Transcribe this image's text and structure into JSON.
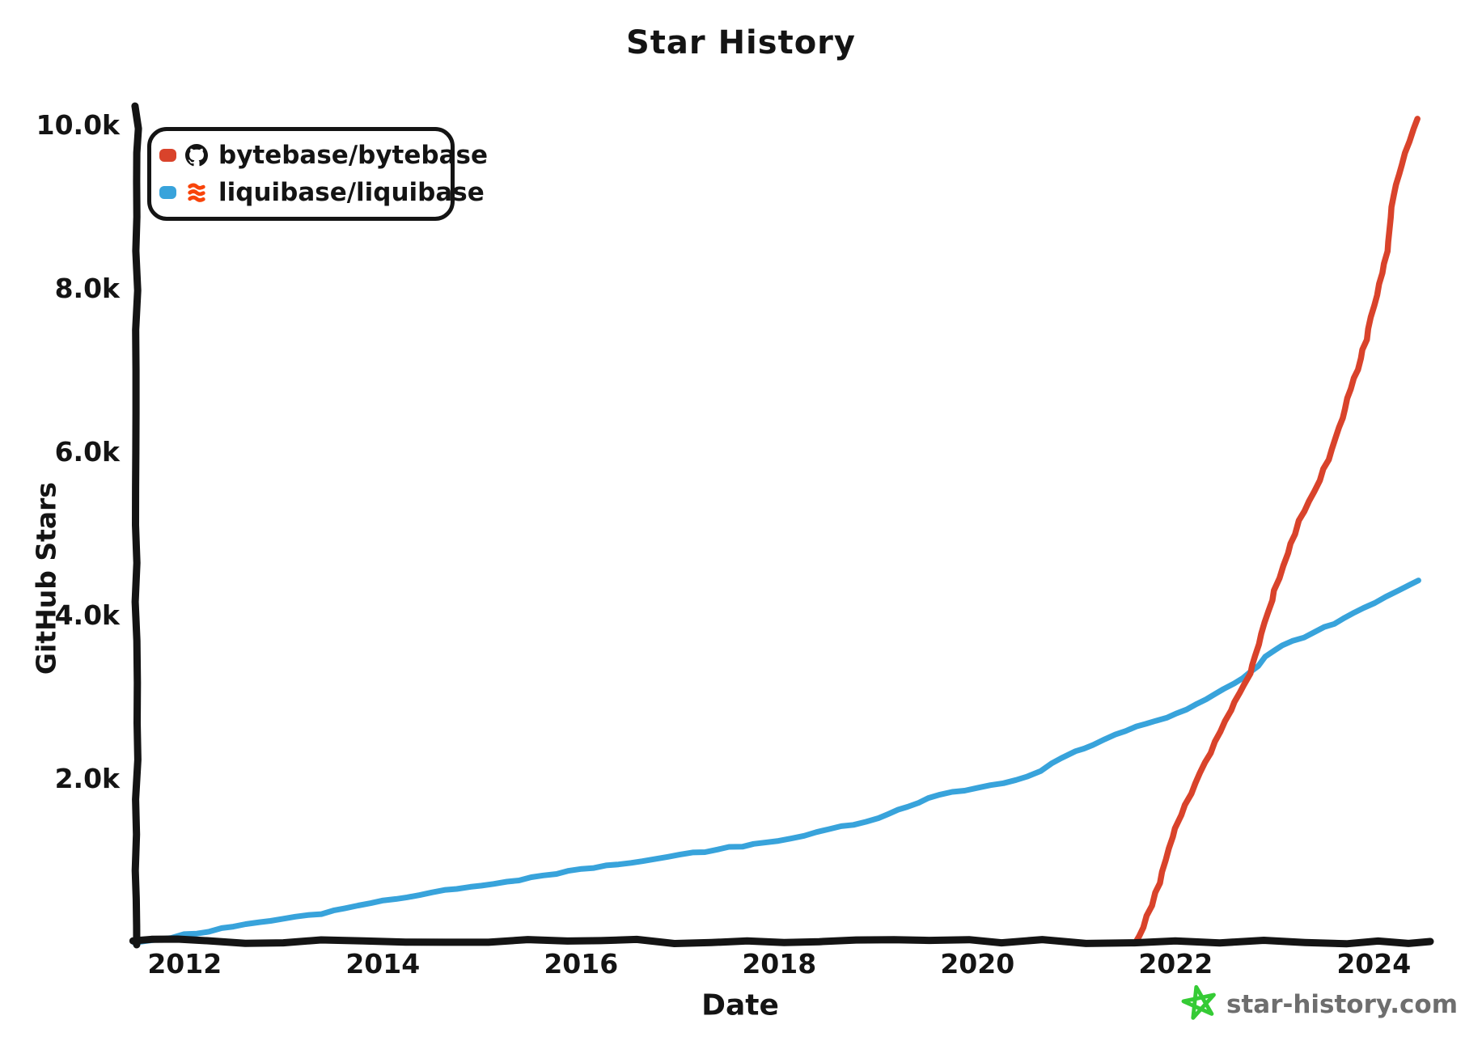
{
  "title": "Star History",
  "colors": {
    "bytebase_red": "#d9432b",
    "liquibase_blue": "#38a3db",
    "axis_black": "#141414",
    "watermark_green": "#35cb35",
    "watermark_gray": "#6e6e6e",
    "liquibase_logo_orange": "#f8440a",
    "background": "#ffffff"
  },
  "legend": {
    "items": [
      {
        "label": "bytebase/bytebase",
        "marker_color": "#d9432b",
        "icon": "github-icon"
      },
      {
        "label": "liquibase/liquibase",
        "marker_color": "#38a3db",
        "icon": "liquibase-icon"
      }
    ]
  },
  "axes": {
    "x_label": "Date",
    "y_label": "GitHub Stars"
  },
  "watermark": {
    "text": "star-history.com",
    "icon": "star-icon"
  },
  "chart_data": {
    "type": "line",
    "title": "Star History",
    "xlabel": "Date",
    "ylabel": "GitHub Stars",
    "x_unit": "decimal_year",
    "x_range": [
      2011.5,
      2024.6
    ],
    "y_range": [
      0,
      10200
    ],
    "grid": false,
    "legend_position": "top-left",
    "x_ticks": [
      {
        "value": 2012,
        "label": "2012"
      },
      {
        "value": 2014,
        "label": "2014"
      },
      {
        "value": 2016,
        "label": "2016"
      },
      {
        "value": 2018,
        "label": "2018"
      },
      {
        "value": 2020,
        "label": "2020"
      },
      {
        "value": 2022,
        "label": "2022"
      },
      {
        "value": 2024,
        "label": "2024"
      }
    ],
    "y_ticks": [
      {
        "value": 2000,
        "label": "2.0k"
      },
      {
        "value": 4000,
        "label": "4.0k"
      },
      {
        "value": 6000,
        "label": "6.0k"
      },
      {
        "value": 8000,
        "label": "8.0k"
      },
      {
        "value": 10000,
        "label": "10.0k"
      }
    ],
    "series": [
      {
        "name": "liquibase/liquibase",
        "color": "#38a3db",
        "points": [
          [
            2011.5,
            0
          ],
          [
            2012,
            90
          ],
          [
            2012.5,
            190
          ],
          [
            2013,
            290
          ],
          [
            2013.5,
            380
          ],
          [
            2014,
            500
          ],
          [
            2014.5,
            610
          ],
          [
            2015,
            700
          ],
          [
            2015.5,
            790
          ],
          [
            2016,
            890
          ],
          [
            2016.5,
            980
          ],
          [
            2017,
            1070
          ],
          [
            2017.5,
            1160
          ],
          [
            2018,
            1250
          ],
          [
            2018.5,
            1380
          ],
          [
            2019,
            1520
          ],
          [
            2019.5,
            1760
          ],
          [
            2020,
            1900
          ],
          [
            2020.5,
            2030
          ],
          [
            2020.85,
            2260
          ],
          [
            2021,
            2330
          ],
          [
            2021.5,
            2590
          ],
          [
            2022,
            2790
          ],
          [
            2022.4,
            3050
          ],
          [
            2022.75,
            3300
          ],
          [
            2023,
            3580
          ],
          [
            2023.5,
            3850
          ],
          [
            2024,
            4150
          ],
          [
            2024.45,
            4430
          ]
        ]
      },
      {
        "name": "bytebase/bytebase",
        "color": "#d9432b",
        "points": [
          [
            2021.6,
            0
          ],
          [
            2021.8,
            600
          ],
          [
            2022,
            1400
          ],
          [
            2022.2,
            1950
          ],
          [
            2022.4,
            2450
          ],
          [
            2022.6,
            2950
          ],
          [
            2022.75,
            3300
          ],
          [
            2023,
            4300
          ],
          [
            2023.2,
            5000
          ],
          [
            2023.35,
            5400
          ],
          [
            2023.5,
            5800
          ],
          [
            2023.65,
            6300
          ],
          [
            2023.8,
            6900
          ],
          [
            2023.95,
            7500
          ],
          [
            2024.05,
            8050
          ],
          [
            2024.13,
            8450
          ],
          [
            2024.18,
            9000
          ],
          [
            2024.25,
            9400
          ],
          [
            2024.32,
            9650
          ],
          [
            2024.44,
            10080
          ]
        ]
      }
    ]
  }
}
